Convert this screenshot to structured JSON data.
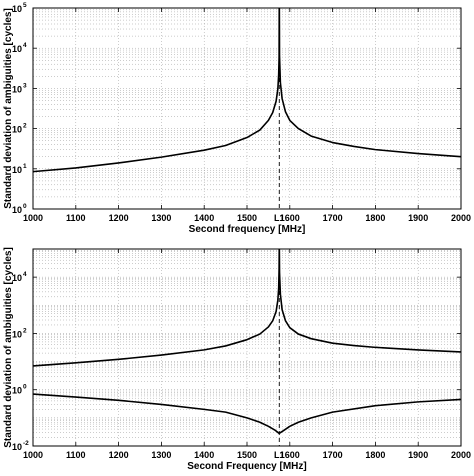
{
  "chart_data": [
    {
      "type": "line",
      "xlabel": "Second frequency [MHz]",
      "ylabel": "Standard deviation of ambiguities [cycles]",
      "xlim": [
        1000,
        2000
      ],
      "ylim": [
        1,
        100000
      ],
      "yscale": "log",
      "grid": true,
      "x_ticks": [
        "1000",
        "1100",
        "1200",
        "1300",
        "1400",
        "1500",
        "1600",
        "1700",
        "1800",
        "1900",
        "2000"
      ],
      "y_ticks": [
        {
          "base": "10",
          "exp": "0",
          "value": 1
        },
        {
          "base": "10",
          "exp": "1",
          "value": 10
        },
        {
          "base": "10",
          "exp": "2",
          "value": 100
        },
        {
          "base": "10",
          "exp": "3",
          "value": 1000
        },
        {
          "base": "10",
          "exp": "4",
          "value": 10000
        },
        {
          "base": "10",
          "exp": "5",
          "value": 100000
        }
      ],
      "marker": {
        "label": "L1",
        "x": 1575.42
      },
      "series": [
        {
          "points": [
            [
              1000,
              8.5
            ],
            [
              1100,
              10.5
            ],
            [
              1200,
              14
            ],
            [
              1300,
              19.5
            ],
            [
              1400,
              29
            ],
            [
              1450,
              38
            ],
            [
              1500,
              60
            ],
            [
              1530,
              92
            ],
            [
              1550,
              160
            ],
            [
              1560,
              250
            ],
            [
              1568,
              480
            ],
            [
              1572,
              950
            ],
            [
              1574,
              2200
            ],
            [
              1575,
              6000
            ],
            [
              1575.3,
              100000
            ],
            [
              1575.6,
              100000
            ],
            [
              1576,
              6500
            ],
            [
              1578,
              1400
            ],
            [
              1582,
              560
            ],
            [
              1590,
              260
            ],
            [
              1600,
              160
            ],
            [
              1620,
              100
            ],
            [
              1650,
              65
            ],
            [
              1700,
              45
            ],
            [
              1750,
              36
            ],
            [
              1800,
              30
            ],
            [
              1900,
              24
            ],
            [
              2000,
              20
            ]
          ]
        }
      ]
    },
    {
      "type": "line",
      "xlabel": "Second Frequency [MHz]",
      "ylabel": "Standard deviation of ambiguities [cycles]",
      "xlim": [
        1000,
        2000
      ],
      "ylim": [
        0.01,
        100000
      ],
      "yscale": "log",
      "grid": true,
      "x_ticks": [
        "1000",
        "1100",
        "1200",
        "1300",
        "1400",
        "1500",
        "1600",
        "1700",
        "1800",
        "1900",
        "2000"
      ],
      "y_ticks": [
        {
          "base": "10",
          "exp": "-2",
          "value": 0.01
        },
        {
          "base": "10",
          "exp": "0",
          "value": 1
        },
        {
          "base": "10",
          "exp": "2",
          "value": 100
        },
        {
          "base": "10",
          "exp": "4",
          "value": 10000
        }
      ],
      "marker": {
        "label": "L1",
        "x": 1575.42
      },
      "series": [
        {
          "points": [
            [
              1000,
              7
            ],
            [
              1100,
              9
            ],
            [
              1200,
              12
            ],
            [
              1300,
              17
            ],
            [
              1400,
              26
            ],
            [
              1450,
              36
            ],
            [
              1500,
              60
            ],
            [
              1530,
              95
            ],
            [
              1550,
              170
            ],
            [
              1560,
              280
            ],
            [
              1568,
              600
            ],
            [
              1572,
              1500
            ],
            [
              1574,
              4000
            ],
            [
              1575,
              20000
            ],
            [
              1575.3,
              100000
            ],
            [
              1575.6,
              100000
            ],
            [
              1576,
              15000
            ],
            [
              1578,
              2500
            ],
            [
              1582,
              700
            ],
            [
              1590,
              280
            ],
            [
              1600,
              160
            ],
            [
              1620,
              95
            ],
            [
              1650,
              65
            ],
            [
              1700,
              45
            ],
            [
              1750,
              37
            ],
            [
              1800,
              32
            ],
            [
              1900,
              26
            ],
            [
              2000,
              22
            ]
          ]
        },
        {
          "points": [
            [
              1000,
              0.7
            ],
            [
              1100,
              0.55
            ],
            [
              1200,
              0.42
            ],
            [
              1300,
              0.3
            ],
            [
              1400,
              0.2
            ],
            [
              1450,
              0.16
            ],
            [
              1500,
              0.1
            ],
            [
              1530,
              0.07
            ],
            [
              1550,
              0.05
            ],
            [
              1565,
              0.037
            ],
            [
              1575,
              0.028
            ],
            [
              1585,
              0.035
            ],
            [
              1600,
              0.05
            ],
            [
              1620,
              0.07
            ],
            [
              1650,
              0.1
            ],
            [
              1700,
              0.16
            ],
            [
              1800,
              0.27
            ],
            [
              1900,
              0.37
            ],
            [
              2000,
              0.45
            ]
          ]
        }
      ]
    }
  ]
}
